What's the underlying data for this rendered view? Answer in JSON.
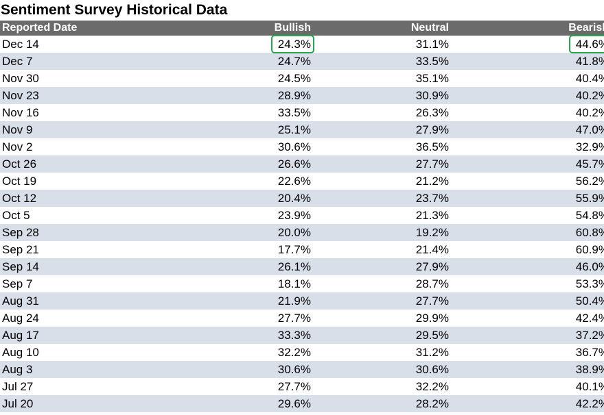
{
  "title": "Sentiment Survey Historical Data",
  "highlight_color": "#22a84a",
  "header_color": "#6b6b6b",
  "stripe_color": "#d9dfe9",
  "chart_data": {
    "type": "table",
    "title": "Sentiment Survey Historical Data",
    "columns": [
      "Reported Date",
      "Bullish",
      "Neutral",
      "Bearish"
    ],
    "rows": [
      [
        "Dec 14",
        "24.3%",
        "31.1%",
        "44.6%"
      ],
      [
        "Dec 7",
        "24.7%",
        "33.5%",
        "41.8%"
      ],
      [
        "Nov 30",
        "24.5%",
        "35.1%",
        "40.4%"
      ],
      [
        "Nov 23",
        "28.9%",
        "30.9%",
        "40.2%"
      ],
      [
        "Nov 16",
        "33.5%",
        "26.3%",
        "40.2%"
      ],
      [
        "Nov 9",
        "25.1%",
        "27.9%",
        "47.0%"
      ],
      [
        "Nov 2",
        "30.6%",
        "36.5%",
        "32.9%"
      ],
      [
        "Oct 26",
        "26.6%",
        "27.7%",
        "45.7%"
      ],
      [
        "Oct 19",
        "22.6%",
        "21.2%",
        "56.2%"
      ],
      [
        "Oct 12",
        "20.4%",
        "23.7%",
        "55.9%"
      ],
      [
        "Oct 5",
        "23.9%",
        "21.3%",
        "54.8%"
      ],
      [
        "Sep 28",
        "20.0%",
        "19.2%",
        "60.8%"
      ],
      [
        "Sep 21",
        "17.7%",
        "21.4%",
        "60.9%"
      ],
      [
        "Sep 14",
        "26.1%",
        "27.9%",
        "46.0%"
      ],
      [
        "Sep 7",
        "18.1%",
        "28.7%",
        "53.3%"
      ],
      [
        "Aug 31",
        "21.9%",
        "27.7%",
        "50.4%"
      ],
      [
        "Aug 24",
        "27.7%",
        "29.9%",
        "42.4%"
      ],
      [
        "Aug 17",
        "33.3%",
        "29.5%",
        "37.2%"
      ],
      [
        "Aug 10",
        "32.2%",
        "31.2%",
        "36.7%"
      ],
      [
        "Aug 3",
        "30.6%",
        "30.6%",
        "38.9%"
      ],
      [
        "Jul 27",
        "27.7%",
        "32.2%",
        "40.1%"
      ],
      [
        "Jul 20",
        "29.6%",
        "28.2%",
        "42.2%"
      ]
    ],
    "highlighted_cells": [
      [
        0,
        1
      ],
      [
        0,
        3
      ]
    ]
  }
}
